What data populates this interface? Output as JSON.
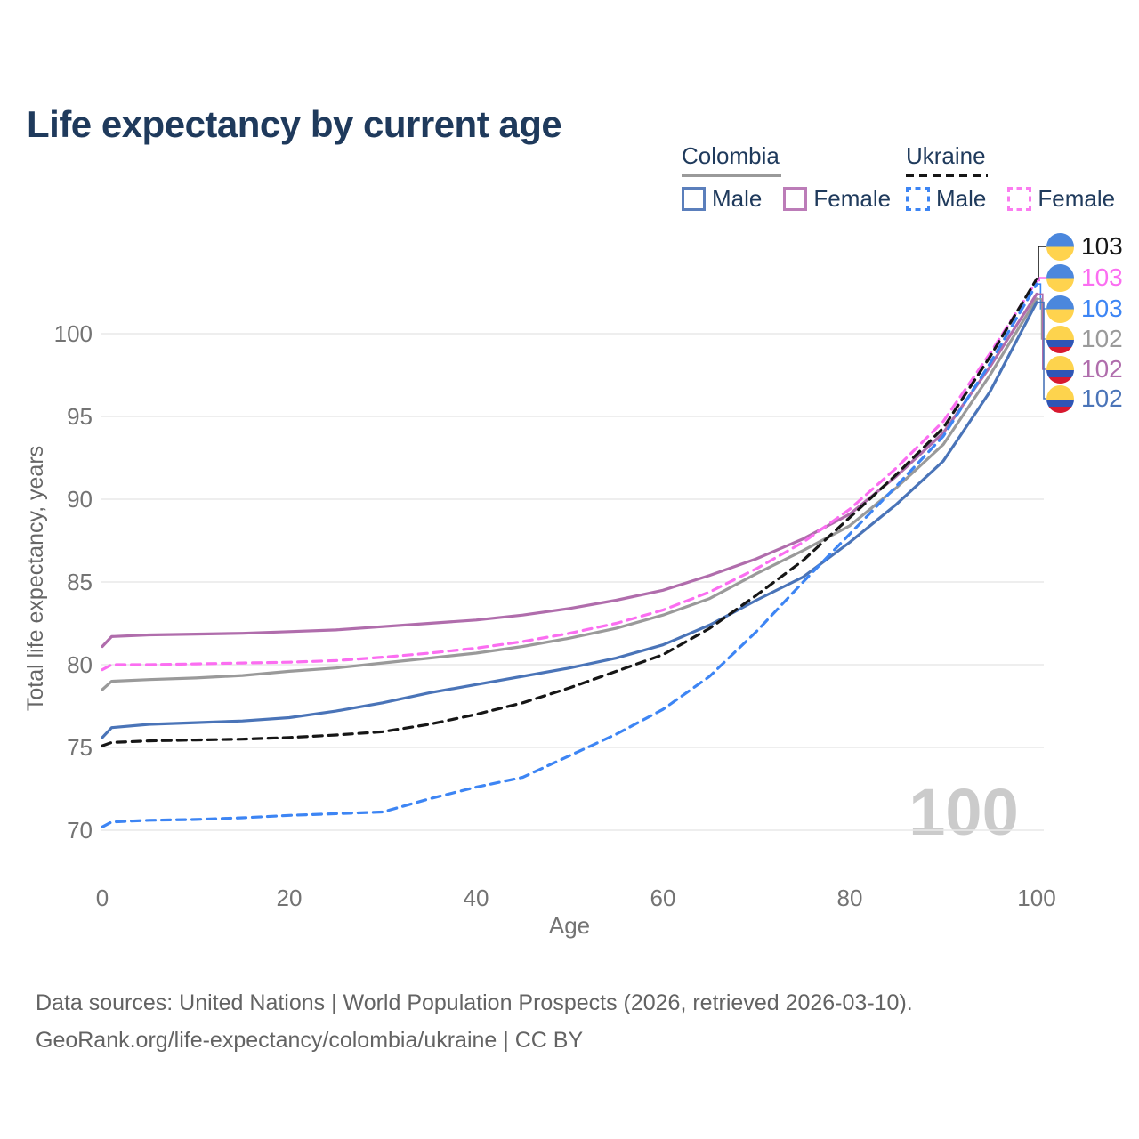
{
  "header": {
    "title": "Life expectancy by current age"
  },
  "legend": {
    "groups": [
      {
        "title": "Colombia",
        "style": "solid",
        "items": [
          {
            "label": "Male",
            "color": "#5b7fbc"
          },
          {
            "label": "Female",
            "color": "#bc7cb8"
          }
        ]
      },
      {
        "title": "Ukraine",
        "style": "dashed",
        "items": [
          {
            "label": "Male",
            "color": "#3d85f4"
          },
          {
            "label": "Female",
            "color": "#fb7cf0"
          }
        ]
      }
    ]
  },
  "chart_data": {
    "type": "line",
    "title": "Life expectancy by current age",
    "xlabel": "Age",
    "ylabel": "Total life expectancy, years",
    "x_ticks": [
      0,
      20,
      40,
      60,
      80,
      100
    ],
    "y_ticks": [
      70,
      75,
      80,
      85,
      90,
      95,
      100
    ],
    "xlim": [
      0,
      100
    ],
    "ylim": [
      70,
      103.5
    ],
    "grid": "horizontal",
    "legend_position": "top-right",
    "watermark": "100",
    "x": [
      0,
      1,
      5,
      10,
      15,
      20,
      25,
      30,
      35,
      40,
      45,
      50,
      55,
      60,
      65,
      70,
      75,
      80,
      85,
      90,
      95,
      100
    ],
    "series": [
      {
        "name": "Ukraine",
        "country": "Ukraine",
        "group": "overall",
        "flag": "ua",
        "color": "#161616",
        "dash": true,
        "end_label": "103",
        "values": [
          75.1,
          75.3,
          75.4,
          75.45,
          75.5,
          75.6,
          75.75,
          75.95,
          76.4,
          77.0,
          77.7,
          78.6,
          79.6,
          80.6,
          82.2,
          84.2,
          86.3,
          88.9,
          91.5,
          94.3,
          98.6,
          103.3
        ]
      },
      {
        "name": "Ukraine Female",
        "country": "Ukraine",
        "group": "Female",
        "flag": "ua",
        "color": "#fb6ef1",
        "dash": true,
        "end_label": "103",
        "values": [
          79.7,
          80.0,
          80.0,
          80.05,
          80.1,
          80.15,
          80.25,
          80.45,
          80.7,
          81.0,
          81.4,
          81.9,
          82.5,
          83.3,
          84.4,
          85.8,
          87.4,
          89.4,
          91.9,
          94.7,
          98.8,
          103.2
        ]
      },
      {
        "name": "Ukraine Male",
        "country": "Ukraine",
        "group": "Male",
        "flag": "ua",
        "color": "#3d85f4",
        "dash": true,
        "end_label": "103",
        "values": [
          70.2,
          70.5,
          70.6,
          70.65,
          70.75,
          70.9,
          71.0,
          71.1,
          71.9,
          72.6,
          73.2,
          74.5,
          75.8,
          77.3,
          79.3,
          82.0,
          85.0,
          87.9,
          90.8,
          93.8,
          98.2,
          103.0
        ]
      },
      {
        "name": "Colombia",
        "country": "Colombia",
        "group": "overall",
        "flag": "co",
        "color": "#9a9a9a",
        "dash": false,
        "end_label": "102",
        "values": [
          78.5,
          79.0,
          79.1,
          79.2,
          79.35,
          79.6,
          79.8,
          80.1,
          80.4,
          80.7,
          81.1,
          81.6,
          82.2,
          83.0,
          84.0,
          85.5,
          86.9,
          88.4,
          90.7,
          93.3,
          97.5,
          102.1
        ]
      },
      {
        "name": "Colombia Female",
        "country": "Colombia",
        "group": "Female",
        "flag": "co",
        "color": "#b06dac",
        "dash": false,
        "end_label": "102",
        "values": [
          81.1,
          81.7,
          81.8,
          81.85,
          81.9,
          82.0,
          82.1,
          82.3,
          82.5,
          82.7,
          83.0,
          83.4,
          83.9,
          84.5,
          85.4,
          86.4,
          87.6,
          89.1,
          91.4,
          94.0,
          98.0,
          102.4
        ]
      },
      {
        "name": "Colombia Male",
        "country": "Colombia",
        "group": "Male",
        "flag": "co",
        "color": "#4a74b8",
        "dash": false,
        "end_label": "102",
        "values": [
          75.6,
          76.2,
          76.4,
          76.5,
          76.6,
          76.8,
          77.2,
          77.7,
          78.3,
          78.8,
          79.3,
          79.8,
          80.4,
          81.2,
          82.4,
          83.9,
          85.3,
          87.4,
          89.7,
          92.3,
          96.5,
          101.9
        ]
      }
    ]
  },
  "footer": {
    "line1": "Data sources: United Nations | World Population Prospects (2026, retrieved 2026-03-10).",
    "line2": "GeoRank.org/life-expectancy/colombia/ukraine | CC BY"
  }
}
